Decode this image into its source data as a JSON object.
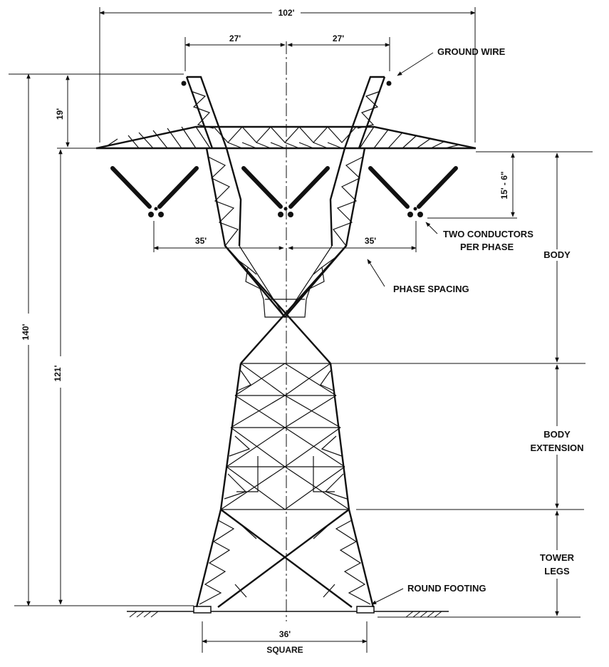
{
  "dimensions": {
    "overall_width": "102'",
    "gw_left": "27'",
    "gw_right": "27'",
    "top_height": "19'",
    "insulator_drop": "15' - 6\"",
    "phase_left": "35'",
    "phase_right": "35'",
    "overall_height": "140'",
    "body_height": "121'",
    "base_width": "36'",
    "base_note": "SQUARE"
  },
  "labels": {
    "ground_wire": "GROUND WIRE",
    "conductors_line1": "TWO CONDUCTORS",
    "conductors_line2": "PER PHASE",
    "phase_spacing": "PHASE SPACING",
    "round_footing": "ROUND  FOOTING"
  },
  "sections": {
    "body": "BODY",
    "extension_line1": "BODY",
    "extension_line2": "EXTENSION",
    "legs_line1": "TOWER",
    "legs_line2": "LEGS"
  }
}
